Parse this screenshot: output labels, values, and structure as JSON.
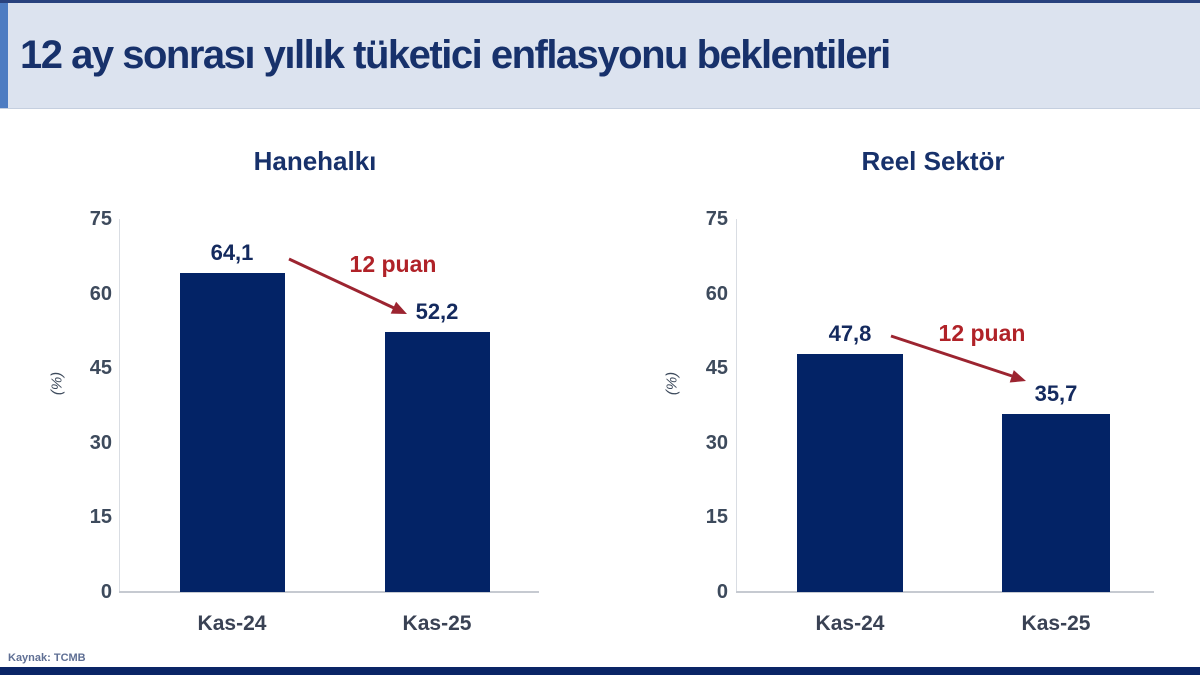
{
  "header": {
    "title": "12 ay sonrası yıllık tüketici enflasyonu beklentileri"
  },
  "footer": {
    "source": "Kaynak: TCMB"
  },
  "colors": {
    "header_bg": "#dce3ef",
    "accent_blue": "#4d7cc2",
    "title_navy": "#17316b",
    "bar_navy": "#032366",
    "value_navy": "#142a5e",
    "annotation_red": "#b02228",
    "arrow_red": "#9c2430",
    "tick_text": "#3d4a5c",
    "cat_text": "#3a4254",
    "baseline_gray": "#c6cad1",
    "axis_gray": "#d9dde3",
    "source_text": "#5f6f94",
    "top_line": "#28427e",
    "bottom_bar": "#0a2566"
  },
  "chart_data": [
    {
      "type": "bar",
      "title": "Hanehalkı",
      "categories": [
        "Kas-24",
        "Kas-25"
      ],
      "values": [
        64.1,
        52.2
      ],
      "value_labels": [
        "64,1",
        "52,2"
      ],
      "annotation": "12 puan",
      "xlabel": "",
      "ylabel": "(%)",
      "yticks": [
        0,
        15,
        30,
        45,
        60,
        75
      ],
      "ylim": [
        0,
        75
      ],
      "grid": false,
      "legend": "none"
    },
    {
      "type": "bar",
      "title": "Reel Sektör",
      "categories": [
        "Kas-24",
        "Kas-25"
      ],
      "values": [
        47.8,
        35.7
      ],
      "value_labels": [
        "47,8",
        "35,7"
      ],
      "annotation": "12 puan",
      "xlabel": "",
      "ylabel": "(%)",
      "yticks": [
        0,
        15,
        30,
        45,
        60,
        75
      ],
      "ylim": [
        0,
        75
      ],
      "grid": false,
      "legend": "none"
    }
  ]
}
